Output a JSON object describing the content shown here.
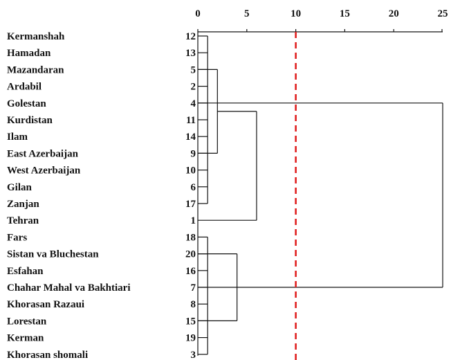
{
  "chart_data": {
    "type": "dendrogram",
    "x_ticks": [
      0,
      5,
      10,
      15,
      20,
      25
    ],
    "xlim": [
      0,
      25
    ],
    "cutoff": 10,
    "cutoff_color": "#e02020",
    "line_color": "#111111",
    "leaves": [
      {
        "name": "Kermanshah",
        "id": "12"
      },
      {
        "name": "Hamadan",
        "id": "13"
      },
      {
        "name": "Mazandaran",
        "id": "5"
      },
      {
        "name": "Ardabil",
        "id": "2"
      },
      {
        "name": "Golestan",
        "id": "4"
      },
      {
        "name": "Kurdistan",
        "id": "11"
      },
      {
        "name": "Ilam",
        "id": "14"
      },
      {
        "name": "East Azerbaijan",
        "id": "9"
      },
      {
        "name": "West Azerbaijan",
        "id": "10"
      },
      {
        "name": "Gilan",
        "id": "6"
      },
      {
        "name": "Zanjan",
        "id": "17"
      },
      {
        "name": "Tehran",
        "id": "1"
      },
      {
        "name": "Fars",
        "id": "18"
      },
      {
        "name": "Sistan va Bluchestan",
        "id": "20"
      },
      {
        "name": "Esfahan",
        "id": "16"
      },
      {
        "name": "Chahar Mahal va Bakhtiari",
        "id": "7"
      },
      {
        "name": "Khorasan Razaui",
        "id": "8"
      },
      {
        "name": "Lorestan",
        "id": "15"
      },
      {
        "name": "Kerman",
        "id": "19"
      },
      {
        "name": "Khorasan shomali",
        "id": "3"
      }
    ],
    "merges": [
      {
        "from": [
          0,
          10
        ],
        "height": 1
      },
      {
        "from": [
          12,
          19
        ],
        "height": 1
      },
      {
        "from": [
          2,
          7
        ],
        "height": 2
      },
      {
        "from": [
          2,
          11
        ],
        "height": 6
      },
      {
        "from": [
          13,
          17
        ],
        "height": 4
      },
      {
        "from": [
          4,
          15
        ],
        "height": 25
      }
    ]
  }
}
